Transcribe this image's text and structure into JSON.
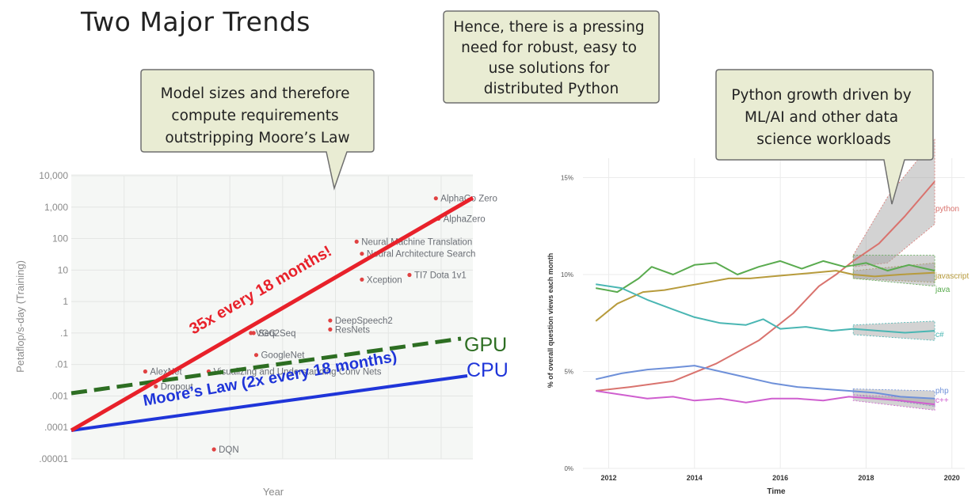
{
  "slide": {
    "title": "Two Major Trends",
    "callouts": [
      {
        "lines": [
          "Model sizes and therefore",
          "compute requirements",
          "outstripping Moore’s Law"
        ]
      },
      {
        "lines": [
          "Hence, there is a pressing",
          "need for robust, easy to",
          "use solutions for",
          "distributed Python"
        ]
      },
      {
        "lines": [
          "Python growth driven by",
          "ML/AI and other data",
          "science workloads"
        ]
      }
    ]
  },
  "chart_data": [
    {
      "type": "scatter",
      "xlabel": "Year",
      "ylabel": "Petaflop/s-day (Training)",
      "yscale": "log",
      "y_tick_labels": [
        "10,000",
        "1,000",
        "100",
        "10",
        "1",
        ".1",
        ".01",
        ".001",
        ".0001",
        ".00001"
      ],
      "y_tick_values": [
        10000,
        1000,
        100,
        10,
        1,
        0.1,
        0.01,
        0.001,
        0.0001,
        1e-05
      ],
      "grid": true,
      "points": [
        {
          "label": "AlexNet",
          "year": 2012.4,
          "value": 0.006
        },
        {
          "label": "Dropout",
          "year": 2012.6,
          "value": 0.002
        },
        {
          "label": "DQN",
          "year": 2013.7,
          "value": 2e-05
        },
        {
          "label": "VGG",
          "year": 2014.4,
          "value": 0.1
        },
        {
          "label": "Seq2Seq",
          "year": 2014.45,
          "value": 0.1
        },
        {
          "label": "GoogleNet",
          "year": 2014.5,
          "value": 0.02
        },
        {
          "label": "Visualizing and Understanding Conv Nets",
          "year": 2013.6,
          "value": 0.006
        },
        {
          "label": "DeepSpeech2",
          "year": 2015.9,
          "value": 0.25
        },
        {
          "label": "ResNets",
          "year": 2015.9,
          "value": 0.13
        },
        {
          "label": "Neural Machine Translation",
          "year": 2016.4,
          "value": 80
        },
        {
          "label": "Neural Architecture Search",
          "year": 2016.5,
          "value": 33
        },
        {
          "label": "Xception",
          "year": 2016.5,
          "value": 5
        },
        {
          "label": "TI7 Dota 1v1",
          "year": 2017.4,
          "value": 7
        },
        {
          "label": "AlphaGo Zero",
          "year": 2017.9,
          "value": 1900
        },
        {
          "label": "AlphaZero",
          "year": 2017.95,
          "value": 430
        }
      ],
      "trend_lines": [
        {
          "label": "35x every 18 months!",
          "color": "#e8212a"
        },
        {
          "label": "Moore’s Law (2x every 18 months)",
          "color": "#1f35d9"
        },
        {
          "label": "GPU",
          "color": "#2d6e22",
          "style": "dashed"
        },
        {
          "label": "CPU",
          "color": "#1f35d9"
        }
      ]
    },
    {
      "type": "line",
      "xlabel": "Time",
      "ylabel": "% of overall question views each month",
      "x_ticks": [
        "2012",
        "2014",
        "2016",
        "2018",
        "2020"
      ],
      "y_ticks": [
        "0%",
        "5%",
        "10%",
        "15%"
      ],
      "ylim": [
        0,
        16
      ],
      "xlim": [
        2011.4,
        2020.3
      ],
      "grid": true,
      "forecast_start": 2017.7,
      "series": [
        {
          "name": "python",
          "color": "#d9736e",
          "points": [
            [
              2011.7,
              4.0
            ],
            [
              2012.5,
              4.2
            ],
            [
              2013.5,
              4.5
            ],
            [
              2014.5,
              5.4
            ],
            [
              2015.5,
              6.6
            ],
            [
              2016.3,
              8.0
            ],
            [
              2016.9,
              9.4
            ],
            [
              2017.3,
              10.0
            ],
            [
              2017.7,
              10.7
            ],
            [
              2018.3,
              11.6
            ],
            [
              2018.9,
              13.0
            ],
            [
              2019.6,
              14.8
            ]
          ],
          "band": [
            [
              2017.7,
              10.4,
              11.0
            ],
            [
              2018.5,
              10.6,
              14.0
            ],
            [
              2019.6,
              12.6,
              17.0
            ]
          ]
        },
        {
          "name": "javascript",
          "color": "#b79b3c",
          "points": [
            [
              2011.7,
              7.6
            ],
            [
              2012.2,
              8.5
            ],
            [
              2012.8,
              9.1
            ],
            [
              2013.3,
              9.2
            ],
            [
              2013.8,
              9.4
            ],
            [
              2014.3,
              9.6
            ],
            [
              2014.8,
              9.8
            ],
            [
              2015.3,
              9.8
            ],
            [
              2015.8,
              9.9
            ],
            [
              2016.3,
              10.0
            ],
            [
              2016.8,
              10.1
            ],
            [
              2017.3,
              10.2
            ],
            [
              2017.7,
              10.0
            ],
            [
              2018.2,
              9.9
            ],
            [
              2018.8,
              10.0
            ],
            [
              2019.6,
              10.1
            ]
          ],
          "band": [
            [
              2017.7,
              9.8,
              10.2
            ],
            [
              2019.6,
              9.6,
              10.6
            ]
          ]
        },
        {
          "name": "java",
          "color": "#5aab4f",
          "points": [
            [
              2011.7,
              9.3
            ],
            [
              2012.2,
              9.1
            ],
            [
              2012.7,
              9.8
            ],
            [
              2013.0,
              10.4
            ],
            [
              2013.5,
              10.0
            ],
            [
              2014.0,
              10.5
            ],
            [
              2014.5,
              10.6
            ],
            [
              2015.0,
              10.0
            ],
            [
              2015.5,
              10.4
            ],
            [
              2016.0,
              10.7
            ],
            [
              2016.5,
              10.3
            ],
            [
              2017.0,
              10.7
            ],
            [
              2017.5,
              10.4
            ],
            [
              2018.0,
              10.6
            ],
            [
              2018.5,
              10.2
            ],
            [
              2019.0,
              10.5
            ],
            [
              2019.6,
              10.2
            ]
          ],
          "band": [
            [
              2017.7,
              9.8,
              11.0
            ],
            [
              2019.6,
              9.4,
              11.0
            ]
          ]
        },
        {
          "name": "c#",
          "color": "#4ab6b3",
          "points": [
            [
              2011.7,
              9.5
            ],
            [
              2012.3,
              9.3
            ],
            [
              2012.9,
              8.7
            ],
            [
              2013.5,
              8.2
            ],
            [
              2014.0,
              7.8
            ],
            [
              2014.6,
              7.5
            ],
            [
              2015.2,
              7.4
            ],
            [
              2015.6,
              7.7
            ],
            [
              2016.0,
              7.2
            ],
            [
              2016.6,
              7.3
            ],
            [
              2017.2,
              7.1
            ],
            [
              2017.7,
              7.2
            ],
            [
              2018.3,
              7.1
            ],
            [
              2018.9,
              7.0
            ],
            [
              2019.6,
              7.1
            ]
          ],
          "band": [
            [
              2017.7,
              6.9,
              7.4
            ],
            [
              2019.6,
              6.6,
              7.6
            ]
          ]
        },
        {
          "name": "php",
          "color": "#6e90d9",
          "points": [
            [
              2011.7,
              4.6
            ],
            [
              2012.3,
              4.9
            ],
            [
              2012.9,
              5.1
            ],
            [
              2013.5,
              5.2
            ],
            [
              2014.0,
              5.3
            ],
            [
              2014.6,
              5.0
            ],
            [
              2015.2,
              4.7
            ],
            [
              2015.8,
              4.4
            ],
            [
              2016.4,
              4.2
            ],
            [
              2017.0,
              4.1
            ],
            [
              2017.6,
              4.0
            ],
            [
              2018.2,
              3.9
            ],
            [
              2018.8,
              3.7
            ],
            [
              2019.6,
              3.6
            ]
          ],
          "band": [
            [
              2017.7,
              3.8,
              4.1
            ],
            [
              2019.6,
              3.2,
              4.0
            ]
          ]
        },
        {
          "name": "c++",
          "color": "#cf5fcf",
          "points": [
            [
              2011.7,
              4.0
            ],
            [
              2012.3,
              3.8
            ],
            [
              2012.9,
              3.6
            ],
            [
              2013.5,
              3.7
            ],
            [
              2014.0,
              3.5
            ],
            [
              2014.6,
              3.6
            ],
            [
              2015.2,
              3.4
            ],
            [
              2015.8,
              3.6
            ],
            [
              2016.4,
              3.6
            ],
            [
              2017.0,
              3.5
            ],
            [
              2017.6,
              3.7
            ],
            [
              2018.2,
              3.6
            ],
            [
              2018.8,
              3.5
            ],
            [
              2019.6,
              3.3
            ]
          ],
          "band": [
            [
              2017.7,
              3.5,
              3.8
            ],
            [
              2019.6,
              3.0,
              3.6
            ]
          ]
        }
      ]
    }
  ]
}
